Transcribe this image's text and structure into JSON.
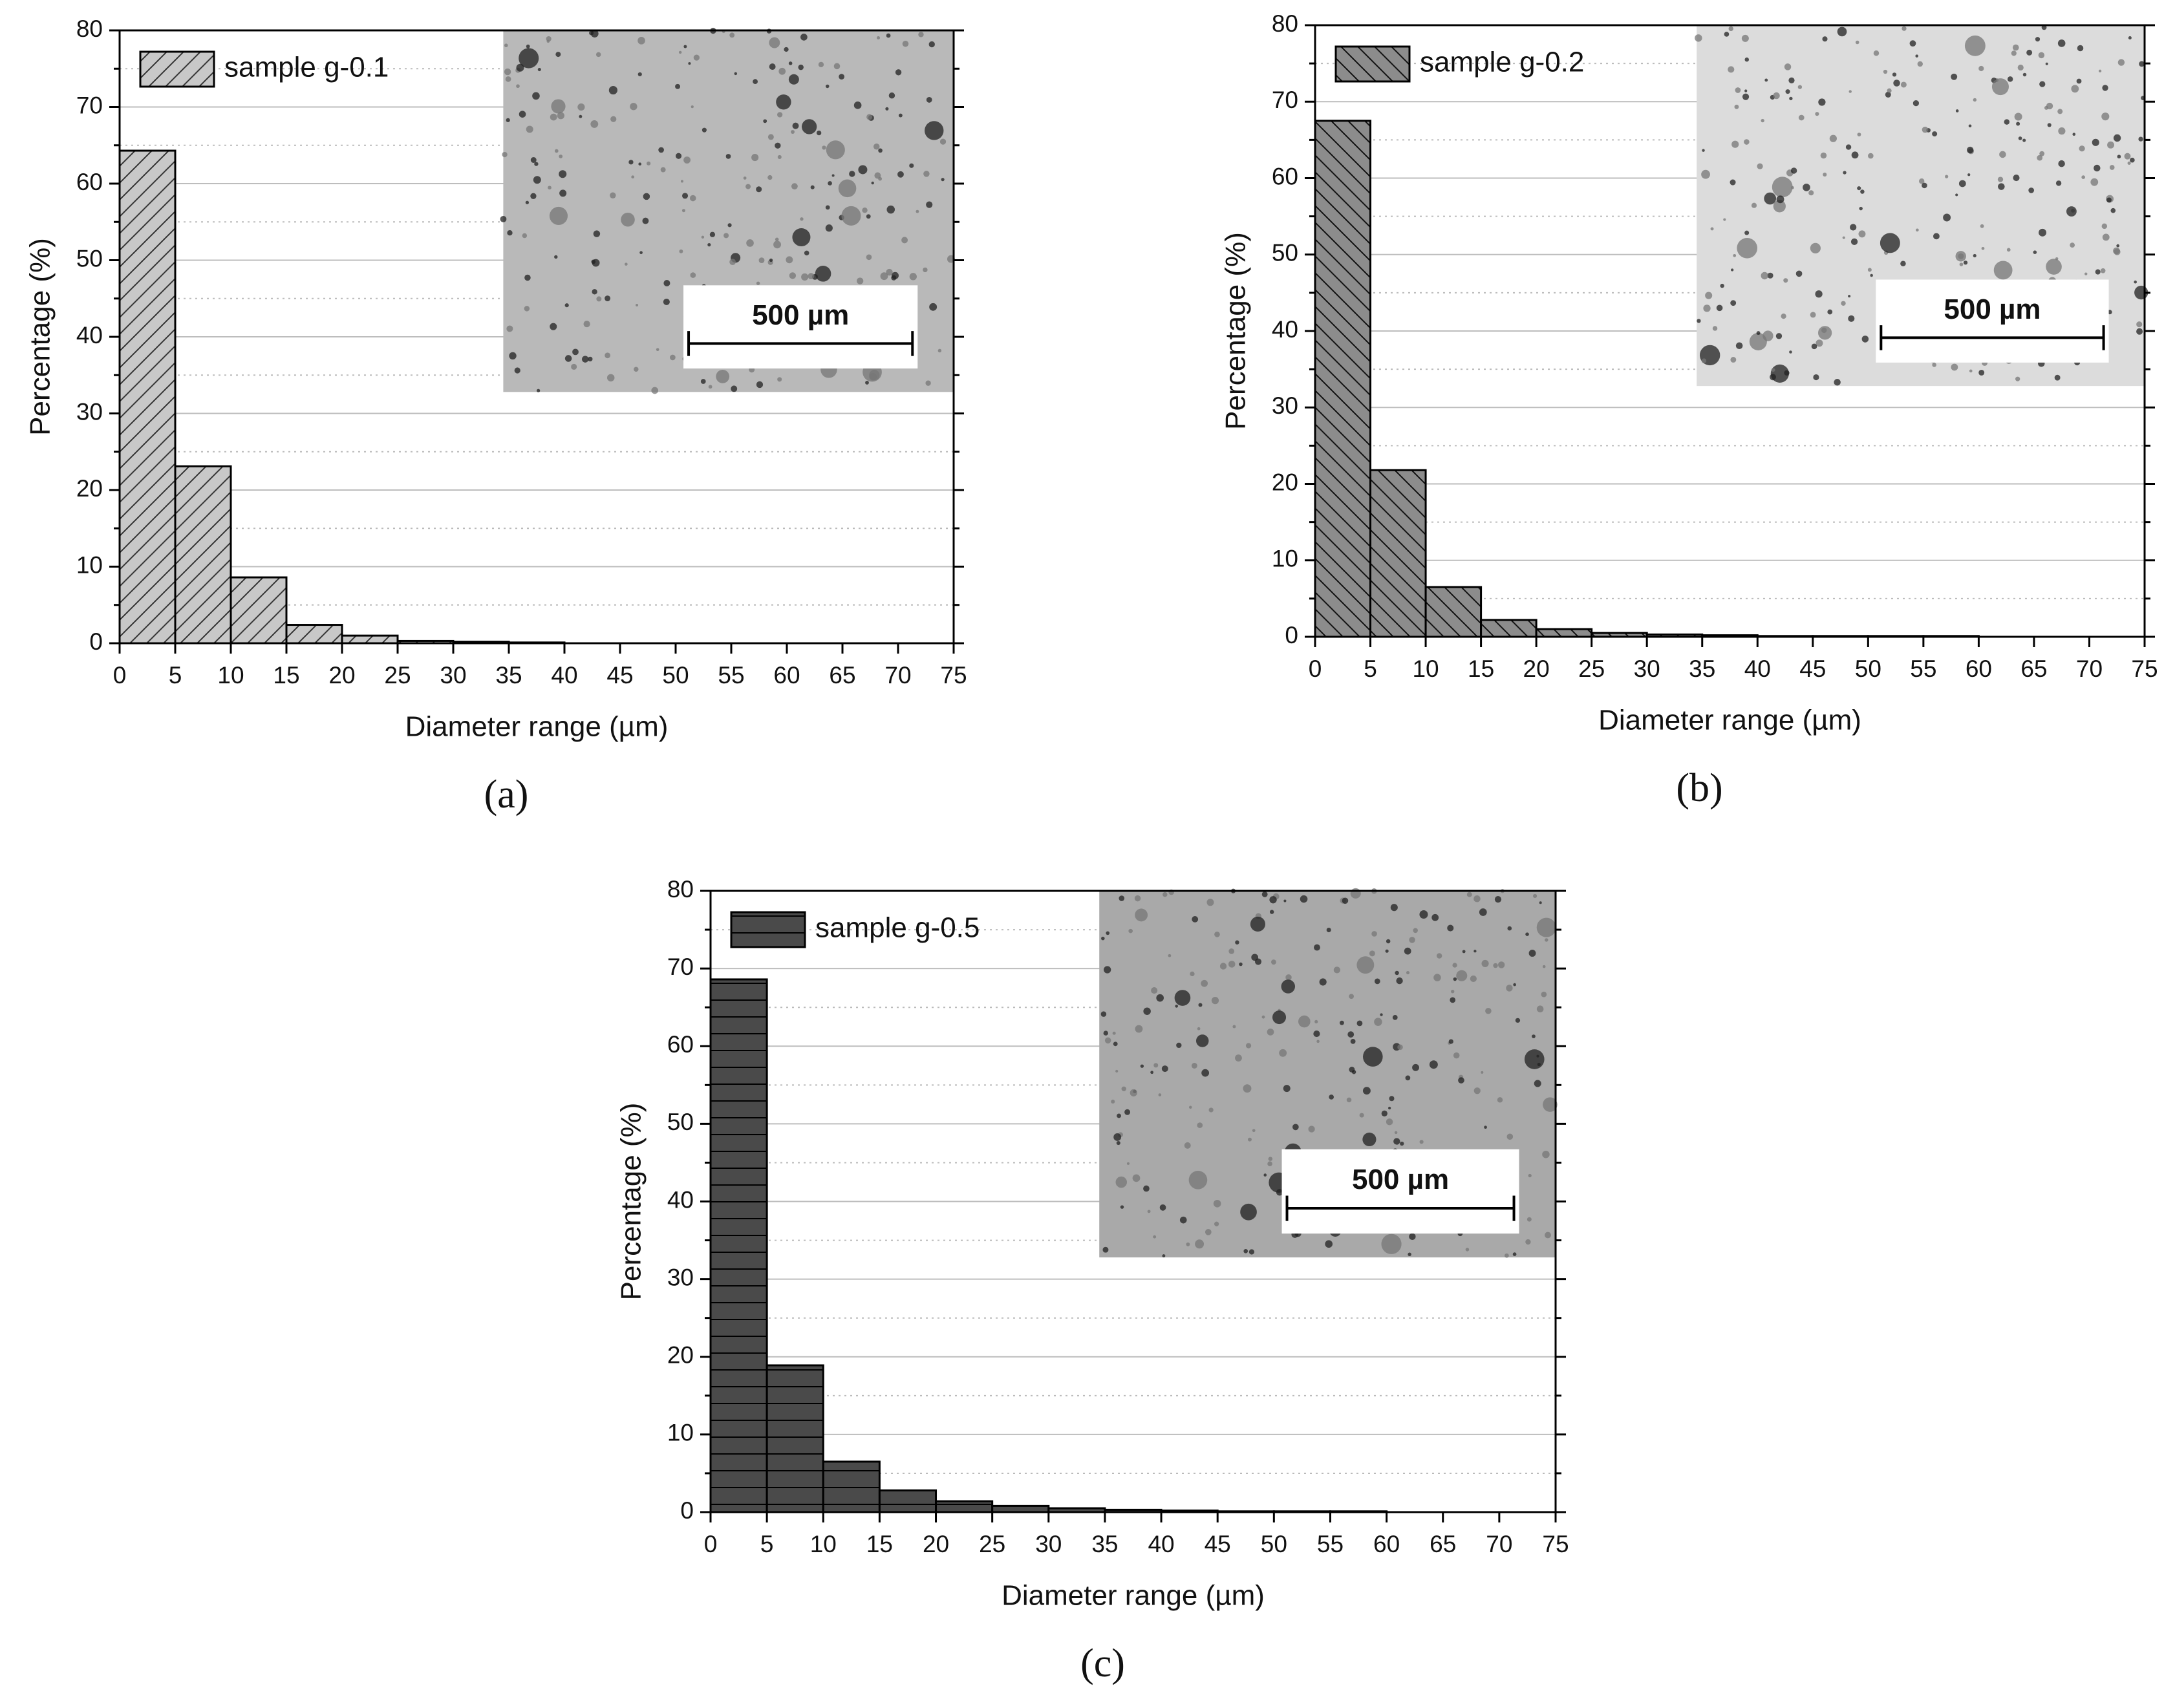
{
  "chart_data": [
    {
      "type": "histogram",
      "panel_label": "(a)",
      "xlabel": "Diameter range (µm)",
      "ylabel": "Percentage (%)",
      "inset_label": "500 µm",
      "bins": [
        0,
        5,
        10,
        15,
        20,
        25,
        30,
        35,
        40,
        45,
        50,
        55,
        60,
        65,
        70,
        75
      ],
      "series": [
        {
          "name": "sample g-0.1",
          "color": "#c8c8c8",
          "hatch": "diagonal-up",
          "values": [
            64.3,
            23.1,
            8.6,
            2.4,
            1.0,
            0.3,
            0.2,
            0.1,
            0,
            0,
            0,
            0,
            0,
            0,
            0
          ]
        }
      ],
      "xlim": [
        0,
        75
      ],
      "xticks": [
        0,
        5,
        10,
        15,
        20,
        25,
        30,
        35,
        40,
        45,
        50,
        55,
        60,
        65,
        70,
        75
      ],
      "ylim": [
        0,
        80
      ],
      "yticks": [
        0,
        10,
        20,
        30,
        40,
        50,
        60,
        70,
        80
      ],
      "grid": true,
      "legend": "upper left"
    },
    {
      "type": "histogram",
      "panel_label": "(b)",
      "xlabel": "Diameter range (µm)",
      "ylabel": "Percentage (%)",
      "inset_label": "500 µm",
      "bins": [
        0,
        5,
        10,
        15,
        20,
        25,
        30,
        35,
        40,
        45,
        50,
        55,
        60,
        65,
        70,
        75
      ],
      "series": [
        {
          "name": "sample g-0.2",
          "color": "#8c8c8c",
          "hatch": "diagonal-down",
          "values": [
            67.5,
            21.8,
            6.5,
            2.2,
            1.0,
            0.5,
            0.3,
            0.2,
            0.1,
            0.1,
            0.1,
            0.1,
            0,
            0,
            0
          ]
        }
      ],
      "xlim": [
        0,
        75
      ],
      "xticks": [
        0,
        5,
        10,
        15,
        20,
        25,
        30,
        35,
        40,
        45,
        50,
        55,
        60,
        65,
        70,
        75
      ],
      "ylim": [
        0,
        80
      ],
      "yticks": [
        0,
        10,
        20,
        30,
        40,
        50,
        60,
        70,
        80
      ],
      "grid": true,
      "legend": "upper left"
    },
    {
      "type": "histogram",
      "panel_label": "(c)",
      "xlabel": "Diameter range (µm)",
      "ylabel": "Percentage (%)",
      "inset_label": "500 µm",
      "bins": [
        0,
        5,
        10,
        15,
        20,
        25,
        30,
        35,
        40,
        45,
        50,
        55,
        60,
        65,
        70,
        75
      ],
      "series": [
        {
          "name": "sample g-0.5",
          "color": "#4a4a4a",
          "hatch": "horizontal",
          "values": [
            68.6,
            18.9,
            6.5,
            2.8,
            1.4,
            0.8,
            0.5,
            0.3,
            0.2,
            0.1,
            0.1,
            0.1,
            0,
            0,
            0
          ]
        }
      ],
      "xlim": [
        0,
        75
      ],
      "xticks": [
        0,
        5,
        10,
        15,
        20,
        25,
        30,
        35,
        40,
        45,
        50,
        55,
        60,
        65,
        70,
        75
      ],
      "ylim": [
        0,
        80
      ],
      "yticks": [
        0,
        10,
        20,
        30,
        40,
        50,
        60,
        70,
        80
      ],
      "grid": true,
      "legend": "upper left"
    }
  ]
}
